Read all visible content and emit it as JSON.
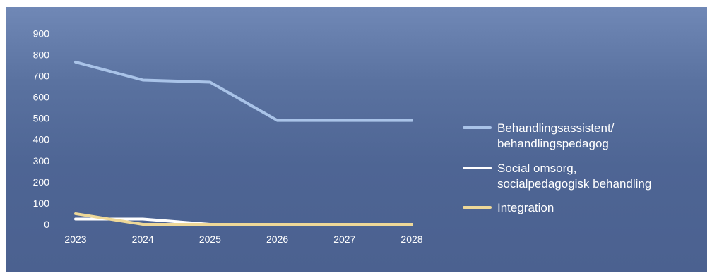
{
  "chart_data": {
    "type": "line",
    "categories": [
      "2023",
      "2024",
      "2025",
      "2026",
      "2027",
      "2028"
    ],
    "y_ticks": [
      "0",
      "100",
      "200",
      "300",
      "400",
      "500",
      "600",
      "700",
      "800",
      "900"
    ],
    "ylim": [
      0,
      900
    ],
    "grid": false,
    "legend_position": "right",
    "series": [
      {
        "name_lines": [
          "Behandlingsassistent/",
          "behandlingspedagog"
        ],
        "color": "#a9c3e8",
        "values": [
          765,
          680,
          670,
          490,
          490,
          490
        ]
      },
      {
        "name_lines": [
          "Social omsorg,",
          "socialpedagogisk behandling"
        ],
        "color": "#ffffff",
        "values": [
          25,
          25,
          0,
          0,
          0,
          0
        ]
      },
      {
        "name_lines": [
          "Integration"
        ],
        "color": "#eed898",
        "values": [
          50,
          0,
          0,
          0,
          0,
          0
        ]
      }
    ]
  }
}
